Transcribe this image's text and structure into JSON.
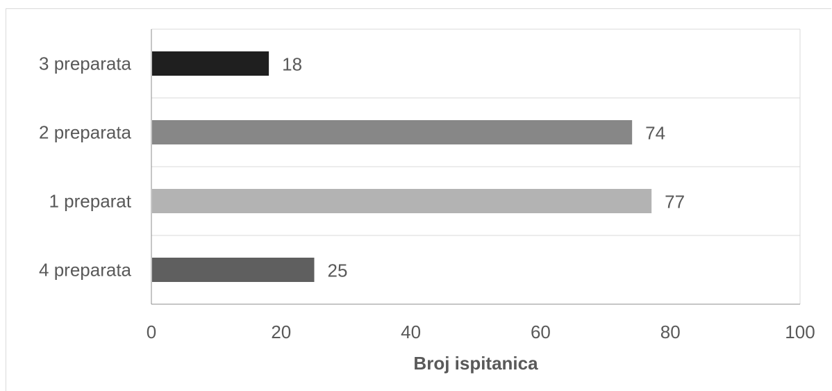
{
  "chart_data": {
    "type": "bar",
    "orientation": "horizontal",
    "categories": [
      "4 preparata",
      "1 preparat",
      "2 preparata",
      "3 preparata"
    ],
    "values": [
      25,
      77,
      74,
      18
    ],
    "bar_colors": [
      "#5f5f5f",
      "#b3b3b3",
      "#878787",
      "#1f1f1f"
    ],
    "xlabel": "Broj ispitanica",
    "ylabel": "",
    "xlim": [
      0,
      100
    ],
    "x_ticks": [
      0,
      20,
      40,
      60,
      80,
      100
    ],
    "x_tick_labels": [
      "0",
      "20",
      "40",
      "60",
      "80",
      "100"
    ],
    "data_labels": [
      "25",
      "77",
      "74",
      "18"
    ],
    "grid": "horizontal separators between categories",
    "legend": "none"
  }
}
